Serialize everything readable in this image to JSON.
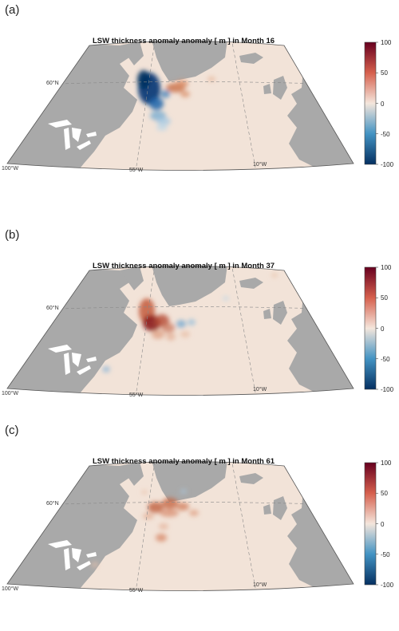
{
  "panels": [
    {
      "label": "(a)",
      "title": "LSW thickness anomaly anomaly [ m ] in Month 16",
      "month": 16
    },
    {
      "label": "(b)",
      "title": "LSW thickness anomaly anomaly [ m ] in Month 37",
      "month": 37
    },
    {
      "label": "(c)",
      "title": "LSW thickness anomaly anomaly [ m ] in Month 61",
      "month": 61
    }
  ],
  "axes": {
    "lat_label": "60°N",
    "lon_labels": [
      "100°W",
      "55°W",
      "10°W"
    ]
  },
  "colorbar": {
    "ticks": [
      "100",
      "50",
      "0",
      "-50",
      "-100"
    ],
    "min": -100,
    "max": 100,
    "colors": {
      "high": "#67001f",
      "mid": "#f4e6dc",
      "low": "#053061"
    }
  },
  "colors": {
    "land": "#a9a9a9",
    "ocean": "#f2e3d8",
    "lakes": "#ffffff"
  }
}
